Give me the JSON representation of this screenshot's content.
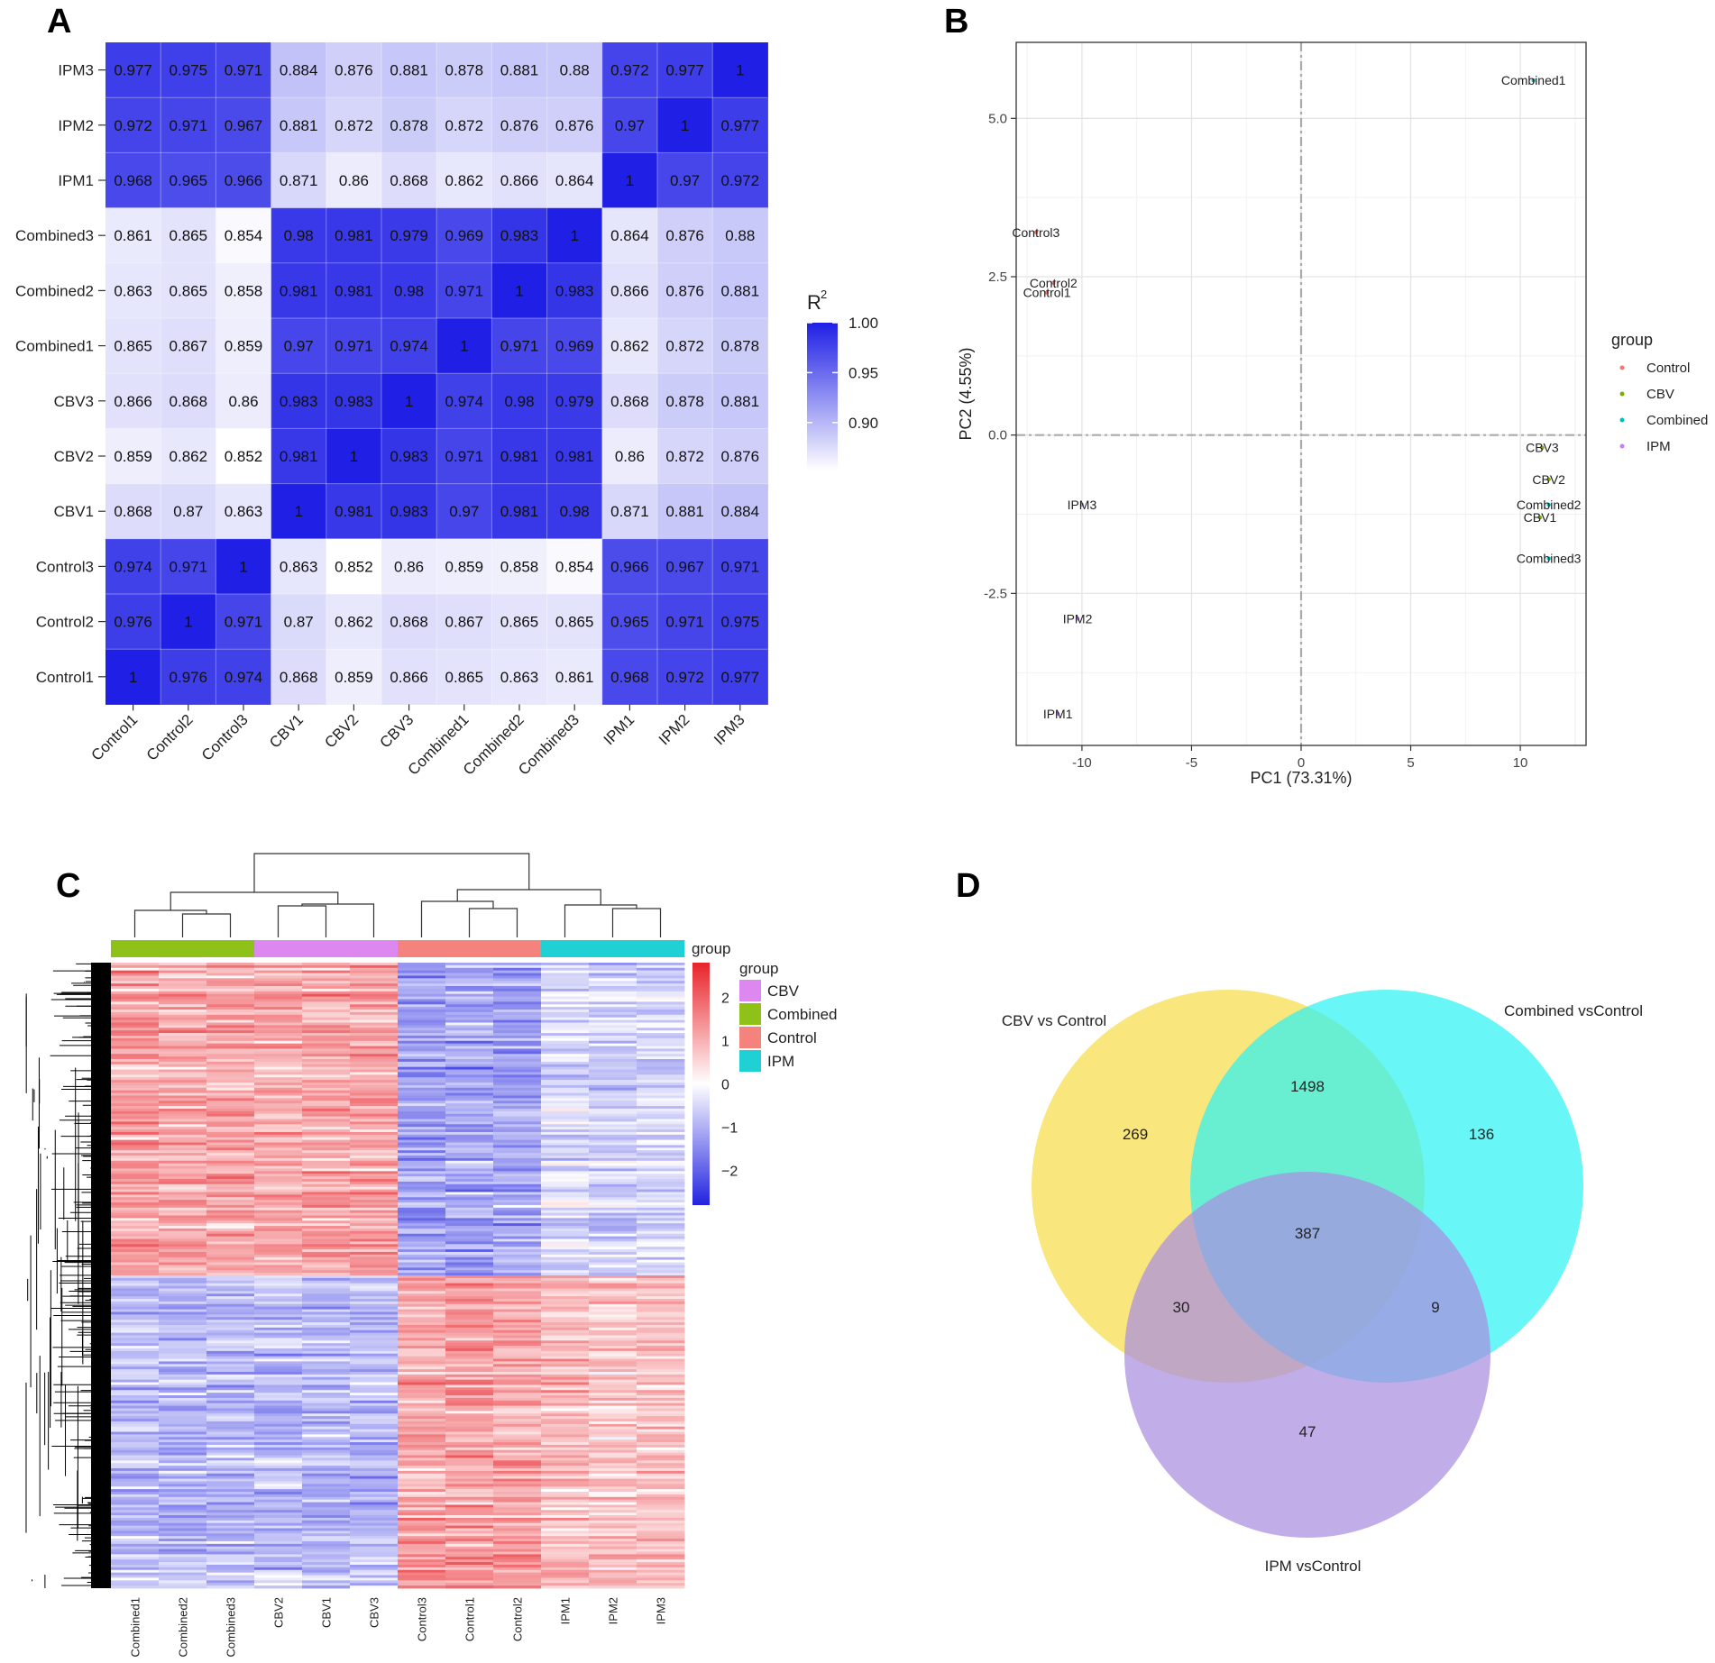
{
  "panels": {
    "A": "A",
    "B": "B",
    "C": "C",
    "D": "D"
  },
  "chart_data": [
    {
      "panel": "A",
      "type": "heatmap",
      "title": "",
      "row_labels": [
        "IPM3",
        "IPM2",
        "IPM1",
        "Combined3",
        "Combined2",
        "Combined1",
        "CBV3",
        "CBV2",
        "CBV1",
        "Control3",
        "Control2",
        "Control1"
      ],
      "col_labels": [
        "Control1",
        "Control2",
        "Control3",
        "CBV1",
        "CBV2",
        "CBV3",
        "Combined1",
        "Combined2",
        "Combined3",
        "IPM1",
        "IPM2",
        "IPM3"
      ],
      "values": [
        [
          "0.977",
          "0.975",
          "0.971",
          "0.884",
          "0.876",
          "0.881",
          "0.878",
          "0.881",
          "0.88",
          "0.972",
          "0.977",
          "1"
        ],
        [
          "0.972",
          "0.971",
          "0.967",
          "0.881",
          "0.872",
          "0.878",
          "0.872",
          "0.876",
          "0.876",
          "0.97",
          "1",
          "0.977"
        ],
        [
          "0.968",
          "0.965",
          "0.966",
          "0.871",
          "0.86",
          "0.868",
          "0.862",
          "0.866",
          "0.864",
          "1",
          "0.97",
          "0.972"
        ],
        [
          "0.861",
          "0.865",
          "0.854",
          "0.98",
          "0.981",
          "0.979",
          "0.969",
          "0.983",
          "1",
          "0.864",
          "0.876",
          "0.88"
        ],
        [
          "0.863",
          "0.865",
          "0.858",
          "0.981",
          "0.981",
          "0.98",
          "0.971",
          "1",
          "0.983",
          "0.866",
          "0.876",
          "0.881"
        ],
        [
          "0.865",
          "0.867",
          "0.859",
          "0.97",
          "0.971",
          "0.974",
          "1",
          "0.971",
          "0.969",
          "0.862",
          "0.872",
          "0.878"
        ],
        [
          "0.866",
          "0.868",
          "0.86",
          "0.983",
          "0.983",
          "1",
          "0.974",
          "0.98",
          "0.979",
          "0.868",
          "0.878",
          "0.881"
        ],
        [
          "0.859",
          "0.862",
          "0.852",
          "0.981",
          "1",
          "0.983",
          "0.971",
          "0.981",
          "0.981",
          "0.86",
          "0.872",
          "0.876"
        ],
        [
          "0.868",
          "0.87",
          "0.863",
          "1",
          "0.981",
          "0.983",
          "0.97",
          "0.981",
          "0.98",
          "0.871",
          "0.881",
          "0.884"
        ],
        [
          "0.974",
          "0.971",
          "1",
          "0.863",
          "0.852",
          "0.86",
          "0.859",
          "0.858",
          "0.854",
          "0.966",
          "0.967",
          "0.971"
        ],
        [
          "0.976",
          "1",
          "0.971",
          "0.87",
          "0.862",
          "0.868",
          "0.867",
          "0.865",
          "0.865",
          "0.965",
          "0.971",
          "0.975"
        ],
        [
          "1",
          "0.976",
          "0.974",
          "0.868",
          "0.859",
          "0.866",
          "0.865",
          "0.863",
          "0.861",
          "0.968",
          "0.972",
          "0.977"
        ]
      ],
      "legend": {
        "title": "R",
        "superscript": "2",
        "ticks": [
          "1.00",
          "0.95",
          "0.90"
        ],
        "tick_values": [
          1.0,
          0.95,
          0.9
        ],
        "min": 0.852,
        "max": 1.0,
        "low_color": "#ffffff",
        "high_color": "#1f1fe6"
      }
    },
    {
      "panel": "B",
      "type": "scatter",
      "xlabel": "PC1 (73.31%)",
      "ylabel": "PC2 (4.55%)",
      "xlim": [
        -13,
        13
      ],
      "ylim": [
        -4.9,
        6.2
      ],
      "x_ticks": [
        -10,
        -5,
        0,
        5,
        10
      ],
      "x_tick_labels": [
        "-10",
        "-5",
        "0",
        "5",
        "10"
      ],
      "y_ticks": [
        -2.5,
        0.0,
        2.5,
        5.0
      ],
      "y_tick_labels": [
        "-2.5",
        "0.0",
        "2.5",
        "5.0"
      ],
      "legend_title": "group",
      "groups": [
        {
          "name": "Control",
          "color": "#f8766d"
        },
        {
          "name": "CBV",
          "color": "#7cae00"
        },
        {
          "name": "Combined",
          "color": "#00bfc4"
        },
        {
          "name": "IPM",
          "color": "#c77cff"
        }
      ],
      "points": [
        {
          "label": "Combined1",
          "group": "Combined",
          "x": 10.6,
          "y": 5.6
        },
        {
          "label": "Control3",
          "group": "Control",
          "x": -12.1,
          "y": 3.2
        },
        {
          "label": "Control2",
          "group": "Control",
          "x": -11.3,
          "y": 2.4
        },
        {
          "label": "Control1",
          "group": "Control",
          "x": -11.6,
          "y": 2.25
        },
        {
          "label": "CBV3",
          "group": "CBV",
          "x": 11.0,
          "y": -0.2
        },
        {
          "label": "CBV2",
          "group": "CBV",
          "x": 11.3,
          "y": -0.7
        },
        {
          "label": "Combined2",
          "group": "Combined",
          "x": 11.3,
          "y": -1.1
        },
        {
          "label": "CBV1",
          "group": "CBV",
          "x": 10.9,
          "y": -1.3
        },
        {
          "label": "Combined3",
          "group": "Combined",
          "x": 11.3,
          "y": -1.95
        },
        {
          "label": "IPM3",
          "group": "IPM",
          "x": -10.0,
          "y": -1.1
        },
        {
          "label": "IPM2",
          "group": "IPM",
          "x": -10.2,
          "y": -2.9
        },
        {
          "label": "IPM1",
          "group": "IPM",
          "x": -11.1,
          "y": -4.4
        }
      ]
    },
    {
      "panel": "C",
      "type": "heatmap",
      "columns": [
        "Combined1",
        "Combined2",
        "Combined3",
        "CBV2",
        "CBV1",
        "CBV3",
        "Control3",
        "Control1",
        "Control2",
        "IPM1",
        "IPM2",
        "IPM3"
      ],
      "column_groups": [
        "Combined",
        "Combined",
        "Combined",
        "CBV",
        "CBV",
        "CBV",
        "Control",
        "Control",
        "Control",
        "IPM",
        "IPM",
        "IPM"
      ],
      "group_legend_title": "group",
      "group_legend_top": "group",
      "group_legend": [
        {
          "name": "CBV",
          "color": "#dd88f0"
        },
        {
          "name": "Combined",
          "color": "#8fc219"
        },
        {
          "name": "Control",
          "color": "#f4837d"
        },
        {
          "name": "IPM",
          "color": "#1fd0d5"
        }
      ],
      "scale_ticks": [
        "2",
        "1",
        "0",
        "−1",
        "−2"
      ],
      "scale_values": [
        2,
        1,
        0,
        -1,
        -2
      ],
      "scale_min": -2.8,
      "scale_max": 2.8,
      "block_means": [
        {
          "rows_fraction": 0.5,
          "values": [
            1.3,
            1.2,
            1.25,
            1.2,
            1.25,
            1.3,
            -1.3,
            -1.2,
            -1.25,
            -0.5,
            -0.6,
            -0.5
          ]
        },
        {
          "rows_fraction": 0.5,
          "values": [
            -0.9,
            -1.0,
            -1.0,
            -0.95,
            -1.0,
            -1.0,
            1.2,
            1.3,
            1.25,
            0.9,
            0.8,
            0.85
          ]
        }
      ]
    },
    {
      "panel": "D",
      "type": "venn",
      "sets": [
        {
          "name": "CBV vs Control",
          "color": "#f7dc4a"
        },
        {
          "name": "Combined vsControl",
          "color": "#2ff3f4"
        },
        {
          "name": "IPM vsControl",
          "color": "#a98fe0"
        }
      ],
      "regions": [
        {
          "sets": [
            "CBV vs Control"
          ],
          "value": "269"
        },
        {
          "sets": [
            "Combined vsControl"
          ],
          "value": "136"
        },
        {
          "sets": [
            "IPM vsControl"
          ],
          "value": "47"
        },
        {
          "sets": [
            "CBV vs Control",
            "Combined vsControl"
          ],
          "value": "1498"
        },
        {
          "sets": [
            "CBV vs Control",
            "IPM vsControl"
          ],
          "value": "30"
        },
        {
          "sets": [
            "Combined vsControl",
            "IPM vsControl"
          ],
          "value": "9"
        },
        {
          "sets": [
            "CBV vs Control",
            "Combined vsControl",
            "IPM vsControl"
          ],
          "value": "387"
        }
      ]
    }
  ]
}
